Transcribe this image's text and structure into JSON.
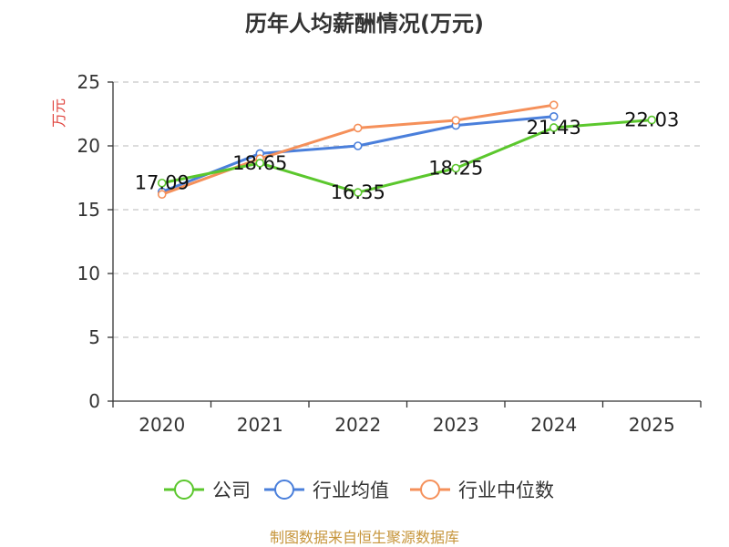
{
  "chart_data": {
    "type": "line",
    "title": "历年人均薪酬情况(万元)",
    "ylabel": "万元",
    "xlabel": "",
    "categories": [
      "2020",
      "2021",
      "2022",
      "2023",
      "2024",
      "2025"
    ],
    "ylim": [
      0,
      25
    ],
    "yticks": [
      0,
      5,
      10,
      15,
      20,
      25
    ],
    "grid": true,
    "legend_position": "bottom",
    "series": [
      {
        "name": "公司",
        "color": "#5bc72d",
        "values": [
          17.09,
          18.65,
          16.35,
          18.25,
          21.43,
          22.03
        ],
        "labels": [
          "17.09",
          "18.65",
          "16.35",
          "18.25",
          "21.43",
          "22.03"
        ]
      },
      {
        "name": "行业均值",
        "color": "#4a7fdb",
        "values": [
          16.4,
          19.4,
          20.0,
          21.6,
          22.3,
          null
        ]
      },
      {
        "name": "行业中位数",
        "color": "#f5905a",
        "values": [
          16.2,
          19.0,
          21.4,
          22.0,
          23.2,
          null
        ]
      }
    ],
    "source": "制图数据来自恒生聚源数据库"
  }
}
